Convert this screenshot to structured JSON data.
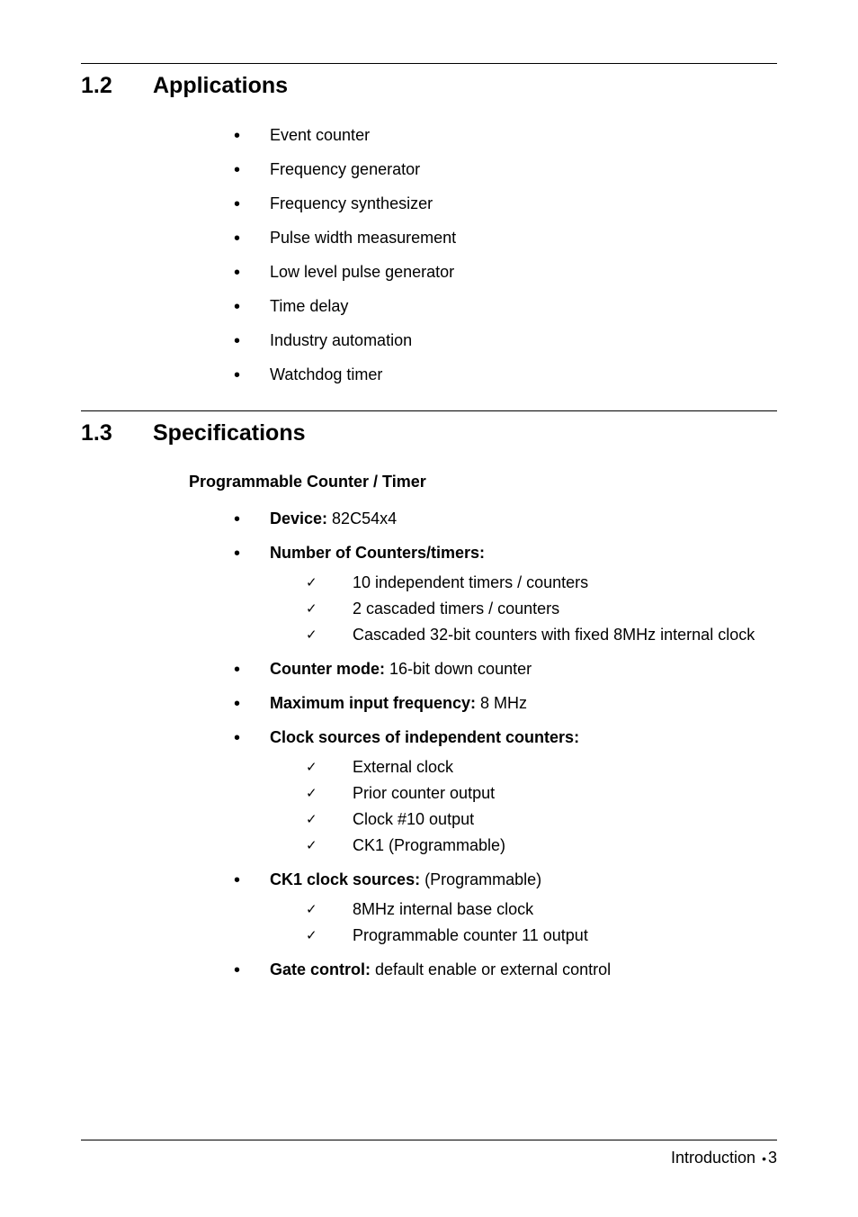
{
  "section1": {
    "number": "1.2",
    "title": "Applications",
    "items": [
      "Event counter",
      "Frequency generator",
      "Frequency synthesizer",
      "Pulse width measurement",
      "Low level pulse generator",
      "Time delay",
      "Industry automation",
      "Watchdog timer"
    ]
  },
  "section2": {
    "number": "1.3",
    "title": "Specifications",
    "subheading": "Programmable Counter / Timer",
    "specs": [
      {
        "label": "Device:",
        "value": " 82C54x4"
      },
      {
        "label": "Number of Counters/timers:",
        "value": "",
        "children": [
          "10 independent timers / counters",
          "2 cascaded timers / counters",
          "Cascaded 32-bit counters with fixed 8MHz internal clock"
        ]
      },
      {
        "label": "Counter mode:",
        "value": " 16-bit down counter"
      },
      {
        "label": "Maximum input frequency:",
        "value": " 8 MHz"
      },
      {
        "label": "Clock sources of independent counters:",
        "value": "",
        "children": [
          "External clock",
          "Prior counter output",
          "Clock #10 output",
          "CK1 (Programmable)"
        ]
      },
      {
        "label": "CK1 clock sources:",
        "value": "  (Programmable)",
        "children": [
          "8MHz internal base clock",
          "Programmable counter 11 output"
        ]
      },
      {
        "label": "Gate control:",
        "value": " default enable or external control"
      }
    ]
  },
  "footer": {
    "chapter": "Introduction",
    "page": "3"
  }
}
